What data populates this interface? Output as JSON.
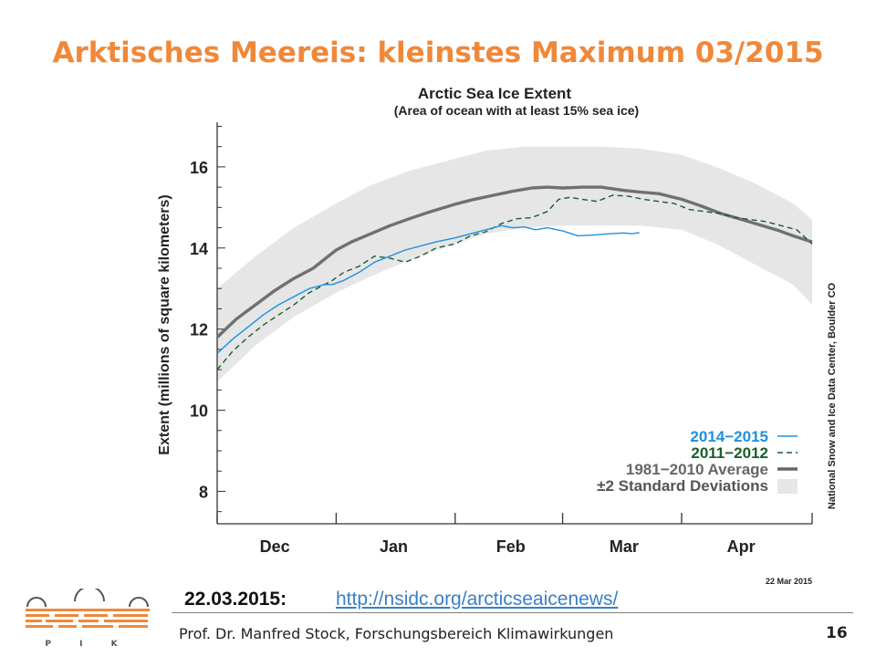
{
  "slide": {
    "title": "Arktisches Meereis: kleinstes Maximum 03/2015",
    "date_label": "22.03.2015:",
    "link_text": "http://nsidc.org/arcticseaicenews/",
    "footer": "Prof. Dr. Manfred Stock, Forschungsbereich Klimawirkungen",
    "page_number": "16",
    "logo_text": "P I K"
  },
  "colors": {
    "title": "#f0883a",
    "series_2014_2015": "#1e90e0",
    "series_2011_2012": "#1b5e2a",
    "average": "#707070",
    "std_band": "#e6e6e6",
    "logo": "#f0883a"
  },
  "chart_data": {
    "type": "line",
    "title": "Arctic Sea Ice Extent",
    "subtitle": "(Area of ocean with at least 15% sea ice)",
    "ylabel": "Extent (millions of square kilometers)",
    "xlabel": "",
    "credit": "National Snow and Ice Data Center, Boulder CO",
    "date_stamp": "22 Mar 2015",
    "ylim": [
      7.2,
      17.1
    ],
    "xlim": [
      0,
      155
    ],
    "yticks": [
      8,
      10,
      12,
      14,
      16
    ],
    "month_labels": [
      {
        "label": "Dec",
        "x": 15
      },
      {
        "label": "Jan",
        "x": 46
      },
      {
        "label": "Feb",
        "x": 76.5
      },
      {
        "label": "Mar",
        "x": 106
      },
      {
        "label": "Apr",
        "x": 136.5
      }
    ],
    "month_boundaries": [
      0,
      31,
      62,
      90,
      121,
      155
    ],
    "legend_position": "bottom-right",
    "std_band": {
      "name": "±2 Standard Deviations",
      "x": [
        0,
        10,
        20,
        31,
        40,
        50,
        62,
        70,
        80,
        90,
        100,
        110,
        121,
        130,
        140,
        150,
        155
      ],
      "upper": [
        13.0,
        13.8,
        14.5,
        15.1,
        15.55,
        15.9,
        16.2,
        16.4,
        16.5,
        16.5,
        16.5,
        16.45,
        16.3,
        16.0,
        15.6,
        15.1,
        14.7
      ],
      "lower": [
        10.7,
        11.6,
        12.3,
        12.9,
        13.3,
        13.7,
        14.1,
        14.35,
        14.5,
        14.55,
        14.55,
        14.55,
        14.45,
        14.1,
        13.6,
        13.1,
        12.6
      ]
    },
    "series": [
      {
        "name": "1981−2010 Average",
        "style": "thick",
        "x": [
          0,
          5,
          10,
          15,
          20,
          25,
          31,
          35,
          40,
          45,
          50,
          55,
          62,
          67,
          72,
          77,
          82,
          86,
          90,
          95,
          100,
          106,
          110,
          115,
          121,
          126,
          131,
          136,
          141,
          146,
          150,
          155
        ],
        "values": [
          11.8,
          12.25,
          12.6,
          12.95,
          13.25,
          13.5,
          13.95,
          14.15,
          14.35,
          14.55,
          14.72,
          14.88,
          15.08,
          15.2,
          15.3,
          15.4,
          15.48,
          15.5,
          15.48,
          15.5,
          15.5,
          15.42,
          15.38,
          15.34,
          15.2,
          15.04,
          14.86,
          14.72,
          14.58,
          14.44,
          14.3,
          14.15
        ]
      },
      {
        "name": "2011−2012",
        "style": "dashed",
        "x": [
          0,
          4,
          8,
          12,
          16,
          20,
          24,
          28,
          30,
          33,
          37,
          41,
          45,
          49,
          53,
          57,
          62,
          66,
          70,
          74,
          78,
          82,
          86,
          89,
          92,
          95,
          99,
          103,
          107,
          111,
          115,
          119,
          123,
          127,
          131,
          135,
          139,
          143,
          147,
          151,
          155
        ],
        "values": [
          11.0,
          11.45,
          11.8,
          12.1,
          12.35,
          12.6,
          12.9,
          13.1,
          13.2,
          13.4,
          13.55,
          13.8,
          13.75,
          13.65,
          13.8,
          14.0,
          14.1,
          14.3,
          14.4,
          14.6,
          14.72,
          14.75,
          14.9,
          15.2,
          15.25,
          15.2,
          15.15,
          15.3,
          15.28,
          15.2,
          15.15,
          15.1,
          14.95,
          14.9,
          14.85,
          14.75,
          14.7,
          14.65,
          14.55,
          14.45,
          14.1
        ]
      },
      {
        "name": "2014−2015",
        "style": "solid",
        "x": [
          0,
          4,
          8,
          12,
          16,
          20,
          24,
          28,
          30,
          33,
          37,
          41,
          45,
          49,
          53,
          57,
          62,
          66,
          70,
          74,
          77,
          80,
          83,
          86,
          90,
          94,
          98,
          102,
          106,
          108,
          110
        ],
        "values": [
          11.4,
          11.75,
          12.05,
          12.35,
          12.6,
          12.8,
          13.0,
          13.1,
          13.1,
          13.2,
          13.4,
          13.65,
          13.8,
          13.95,
          14.05,
          14.15,
          14.25,
          14.35,
          14.45,
          14.55,
          14.5,
          14.52,
          14.45,
          14.5,
          14.42,
          14.3,
          14.32,
          14.35,
          14.37,
          14.35,
          14.38
        ]
      }
    ],
    "legend": [
      {
        "label": "2014−2015",
        "key": "2014_2015"
      },
      {
        "label": "2011−2012",
        "key": "2011_2012"
      },
      {
        "label": "1981−2010 Average",
        "key": "average"
      },
      {
        "label": "±2 Standard Deviations",
        "key": "std"
      }
    ]
  }
}
